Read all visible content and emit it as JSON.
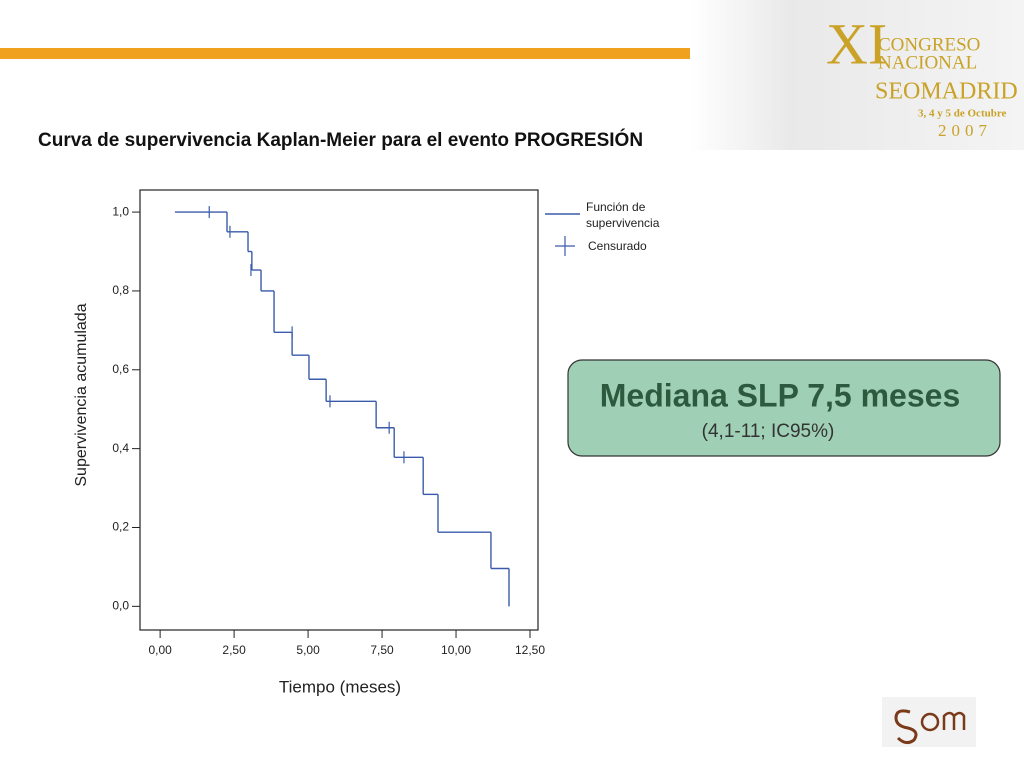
{
  "header": {
    "logo": {
      "numeral": "XI",
      "line1": "CONGRESO",
      "line2": "NACIONAL",
      "line3": "SEOMADRID",
      "dates": "3, 4 y 5 de Octubre",
      "year": "2007"
    }
  },
  "chart_data": {
    "type": "step",
    "title": "Curva de supervivencia Kaplan-Meier para el evento PROGRESIÓN",
    "x_label": "Tiempo (meses)",
    "y_label": "Supervivencia acumulada",
    "series": [
      {
        "name": "Función de supervivencia",
        "color": "#3a5bab",
        "x": [
          0.5,
          2.26,
          2.97,
          3.1,
          3.41,
          3.85,
          4.46,
          5.03,
          5.61,
          7.3,
          7.91,
          8.89,
          9.39,
          11.18,
          11.79
        ],
        "values": [
          1.0,
          0.95,
          0.9,
          0.853,
          0.8,
          0.695,
          0.637,
          0.576,
          0.52,
          0.453,
          0.378,
          0.284,
          0.188,
          0.096,
          0.0
        ]
      },
      {
        "name": "Censurado",
        "color": "#3a5bab",
        "marker": "censor",
        "x": [
          1.66,
          2.36,
          3.07,
          4.46,
          5.74,
          7.74,
          8.24
        ],
        "values": [
          1.0,
          0.95,
          0.853,
          0.695,
          0.52,
          0.453,
          0.378
        ]
      }
    ],
    "xlim": [
      -0.68,
      12.77
    ],
    "ylim": [
      -0.06,
      1.056
    ],
    "xticks": [
      {
        "value": 0,
        "label": "0,00"
      },
      {
        "value": 2.5,
        "label": "2,50"
      },
      {
        "value": 5,
        "label": "5,00"
      },
      {
        "value": 7.5,
        "label": "7,50"
      },
      {
        "value": 10,
        "label": "10,00"
      },
      {
        "value": 12.5,
        "label": "12,50"
      }
    ],
    "yticks": [
      {
        "value": 0,
        "label": "0,0"
      },
      {
        "value": 0.2,
        "label": "0,2"
      },
      {
        "value": 0.4,
        "label": "0,4"
      },
      {
        "value": 0.6,
        "label": "0,6"
      },
      {
        "value": 0.8,
        "label": "0,8"
      },
      {
        "value": 1,
        "label": "1,0"
      }
    ]
  },
  "callout": {
    "title": "Mediana SLP 7,5 meses",
    "subtitle": "(4,1-11; IC95%)"
  }
}
